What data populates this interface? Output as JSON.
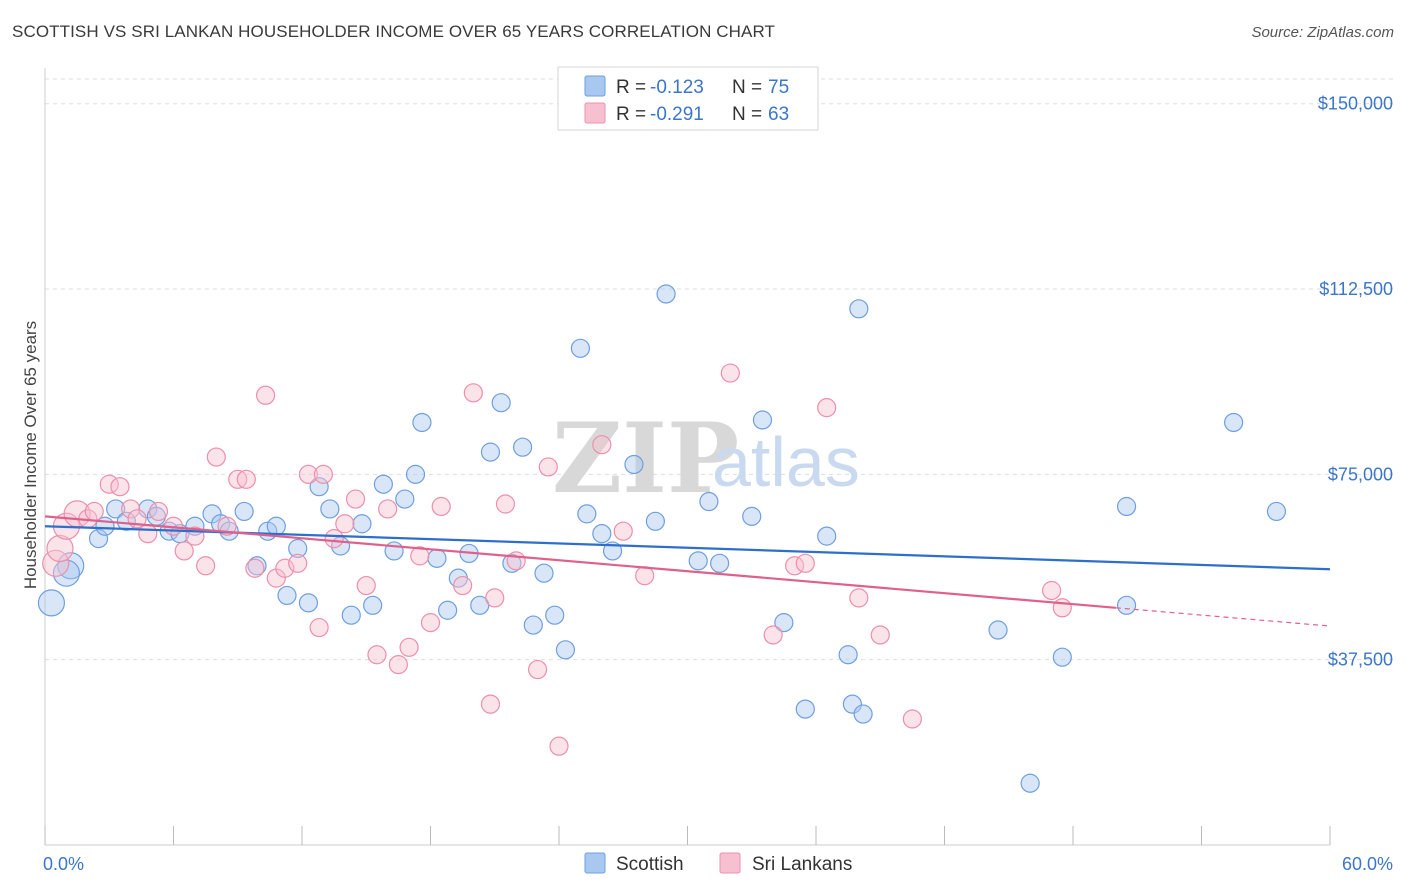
{
  "title": "SCOTTISH VS SRI LANKAN HOUSEHOLDER INCOME OVER 65 YEARS CORRELATION CHART",
  "source": "Source: ZipAtlas.com",
  "watermark": {
    "zip": "ZIP",
    "atlas": "atlas"
  },
  "legend": {
    "rows": [
      {
        "r_label": "R = ",
        "r_value": "-0.123",
        "n_label": "N = ",
        "n_value": "75",
        "color": "#a9c8f0",
        "stroke": "#6e9fe0"
      },
      {
        "r_label": "R = ",
        "r_value": "-0.291",
        "n_label": "N = ",
        "n_value": "63",
        "color": "#f7c0d0",
        "stroke": "#ec8fab"
      }
    ]
  },
  "bottom_legend": [
    {
      "label": "Scottish",
      "color": "#a9c8f0",
      "stroke": "#6e9fe0"
    },
    {
      "label": "Sri Lankans",
      "color": "#f7c0d0",
      "stroke": "#ec8fab"
    }
  ],
  "chart_data": {
    "type": "scatter",
    "title": "SCOTTISH VS SRI LANKAN HOUSEHOLDER INCOME OVER 65 YEARS CORRELATION CHART",
    "xlabel": "",
    "ylabel": "Householder Income Over 65 years",
    "xlim": [
      0,
      60
    ],
    "ylim": [
      0,
      155000
    ],
    "x_tick_labels": [
      "0.0%",
      "60.0%"
    ],
    "y_ticks": [
      37500,
      75000,
      112500,
      150000
    ],
    "y_tick_labels": [
      "$37,500",
      "$75,000",
      "$112,500",
      "$150,000"
    ],
    "grid": "horizontal dashed",
    "legend_position": "top-center",
    "colors": {
      "scottish_line": "#2e6fcc",
      "srilankan_line": "#e0608c"
    },
    "series": [
      {
        "name": "Scottish",
        "trend": {
          "x": [
            0,
            60
          ],
          "y": [
            64500,
            55800
          ]
        },
        "points": [
          [
            0.3,
            49000
          ],
          [
            1.2,
            56500
          ],
          [
            1.0,
            55000
          ],
          [
            2.5,
            62000
          ],
          [
            3.3,
            68000
          ],
          [
            2.8,
            64500
          ],
          [
            3.8,
            65500
          ],
          [
            4.8,
            68000
          ],
          [
            5.2,
            66500
          ],
          [
            5.8,
            63500
          ],
          [
            6.3,
            63000
          ],
          [
            7.0,
            64500
          ],
          [
            7.8,
            67000
          ],
          [
            8.2,
            65000
          ],
          [
            8.6,
            63500
          ],
          [
            9.3,
            67500
          ],
          [
            9.9,
            56500
          ],
          [
            10.4,
            63500
          ],
          [
            10.8,
            64500
          ],
          [
            11.3,
            50500
          ],
          [
            11.8,
            60000
          ],
          [
            12.3,
            49000
          ],
          [
            12.8,
            72500
          ],
          [
            13.3,
            68000
          ],
          [
            13.8,
            60500
          ],
          [
            14.3,
            46500
          ],
          [
            14.8,
            65000
          ],
          [
            15.3,
            48500
          ],
          [
            15.8,
            73000
          ],
          [
            16.3,
            59500
          ],
          [
            16.8,
            70000
          ],
          [
            17.3,
            75000
          ],
          [
            17.6,
            85500
          ],
          [
            18.3,
            58000
          ],
          [
            18.8,
            47500
          ],
          [
            19.3,
            54000
          ],
          [
            19.8,
            59000
          ],
          [
            20.3,
            48500
          ],
          [
            20.8,
            79500
          ],
          [
            21.3,
            89500
          ],
          [
            21.8,
            57000
          ],
          [
            22.3,
            80500
          ],
          [
            22.8,
            44500
          ],
          [
            23.3,
            55000
          ],
          [
            23.8,
            46500
          ],
          [
            24.3,
            39500
          ],
          [
            25.0,
            100500
          ],
          [
            25.3,
            67000
          ],
          [
            26.0,
            63000
          ],
          [
            26.5,
            59500
          ],
          [
            27.5,
            77000
          ],
          [
            28.5,
            65500
          ],
          [
            29.0,
            111500
          ],
          [
            30.5,
            57500
          ],
          [
            31.0,
            69500
          ],
          [
            31.5,
            57000
          ],
          [
            33.0,
            66500
          ],
          [
            33.5,
            86000
          ],
          [
            34.5,
            45000
          ],
          [
            35.5,
            27500
          ],
          [
            36.5,
            62500
          ],
          [
            37.5,
            38500
          ],
          [
            37.7,
            28500
          ],
          [
            38.0,
            108500
          ],
          [
            38.2,
            26500
          ],
          [
            44.5,
            43500
          ],
          [
            46.0,
            12500
          ],
          [
            47.5,
            38000
          ],
          [
            50.5,
            48500
          ],
          [
            50.5,
            68500
          ],
          [
            55.5,
            85500
          ],
          [
            57.5,
            67500
          ]
        ]
      },
      {
        "name": "Sri Lankans",
        "trend": {
          "x": [
            0,
            50
          ],
          "y": [
            66500,
            48000
          ]
        },
        "trend_dashed": {
          "x": [
            50,
            60
          ],
          "y": [
            48000,
            44300
          ]
        },
        "points": [
          [
            0.5,
            57000
          ],
          [
            0.7,
            60000
          ],
          [
            1.0,
            64500
          ],
          [
            1.5,
            67000
          ],
          [
            2.0,
            66000
          ],
          [
            2.3,
            67500
          ],
          [
            3.0,
            73000
          ],
          [
            3.5,
            72500
          ],
          [
            4.0,
            68000
          ],
          [
            4.3,
            66000
          ],
          [
            4.8,
            63000
          ],
          [
            5.3,
            67500
          ],
          [
            6.0,
            64500
          ],
          [
            6.5,
            59500
          ],
          [
            7.0,
            62500
          ],
          [
            7.5,
            56500
          ],
          [
            8.0,
            78500
          ],
          [
            8.5,
            64500
          ],
          [
            9.0,
            74000
          ],
          [
            9.4,
            74000
          ],
          [
            9.8,
            56000
          ],
          [
            10.3,
            91000
          ],
          [
            10.8,
            54000
          ],
          [
            11.2,
            56000
          ],
          [
            11.8,
            57000
          ],
          [
            12.3,
            75000
          ],
          [
            12.8,
            44000
          ],
          [
            13.0,
            75000
          ],
          [
            13.5,
            62000
          ],
          [
            14.0,
            65000
          ],
          [
            14.5,
            70000
          ],
          [
            15.0,
            52500
          ],
          [
            15.5,
            38500
          ],
          [
            16.0,
            68000
          ],
          [
            16.5,
            36500
          ],
          [
            17.0,
            40000
          ],
          [
            17.5,
            58500
          ],
          [
            18.0,
            45000
          ],
          [
            18.5,
            68500
          ],
          [
            19.5,
            52500
          ],
          [
            20.0,
            91500
          ],
          [
            20.8,
            28500
          ],
          [
            21.0,
            50000
          ],
          [
            21.5,
            69000
          ],
          [
            22.0,
            57500
          ],
          [
            23.0,
            35500
          ],
          [
            23.5,
            76500
          ],
          [
            24.0,
            20000
          ],
          [
            26.0,
            81000
          ],
          [
            27.0,
            63500
          ],
          [
            28.0,
            54500
          ],
          [
            32.0,
            95500
          ],
          [
            34.0,
            42500
          ],
          [
            35.0,
            56500
          ],
          [
            35.5,
            57000
          ],
          [
            36.5,
            88500
          ],
          [
            38.0,
            50000
          ],
          [
            39.0,
            42500
          ],
          [
            40.5,
            25500
          ],
          [
            47.0,
            51500
          ],
          [
            47.5,
            48000
          ]
        ]
      }
    ]
  }
}
